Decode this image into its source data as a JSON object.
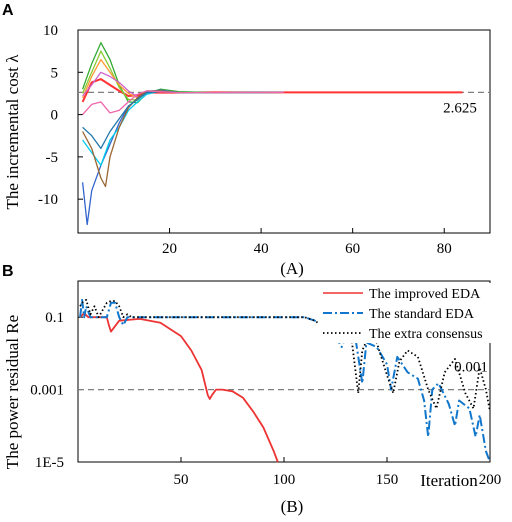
{
  "chart_data": [
    {
      "panel": "A",
      "caption": "(A)",
      "type": "line",
      "ylabel": "The incremental cost λ",
      "xlabel": "",
      "xlim": [
        0,
        90
      ],
      "ylim": [
        -14,
        10
      ],
      "x_ticks": [
        "20",
        "40",
        "60",
        "80"
      ],
      "x_tick_values": [
        20,
        40,
        60,
        80
      ],
      "y_ticks": [
        "10",
        "5",
        "0",
        "-5",
        "-10"
      ],
      "y_tick_values": [
        10,
        5,
        0,
        -5,
        -10
      ],
      "reference_line": {
        "value": 2.625,
        "label": "2.625",
        "color": "#808080"
      },
      "series": [
        {
          "color": "#ff3333",
          "x": [
            1,
            3,
            5,
            7,
            9,
            11,
            13,
            15,
            20,
            30,
            50,
            84
          ],
          "y": [
            1.5,
            3.8,
            4.2,
            3.5,
            2.8,
            2.2,
            2.3,
            2.6,
            2.6,
            2.625,
            2.625,
            2.625
          ]
        },
        {
          "color": "#33aa33",
          "x": [
            1,
            3,
            5,
            7,
            9,
            11,
            13,
            15,
            18,
            22,
            30,
            45
          ],
          "y": [
            3,
            6,
            8.5,
            6.5,
            3.5,
            1.5,
            1.4,
            2.5,
            3.0,
            2.7,
            2.6,
            2.625
          ]
        },
        {
          "color": "#88cc33",
          "x": [
            1,
            3,
            5,
            7,
            9,
            11,
            13,
            15,
            18,
            22,
            30,
            45
          ],
          "y": [
            2.5,
            5,
            7.5,
            5.5,
            3.2,
            1.8,
            1.7,
            2.7,
            2.9,
            2.6,
            2.6,
            2.625
          ]
        },
        {
          "color": "#ff9933",
          "x": [
            1,
            3,
            5,
            7,
            9,
            11,
            13,
            15,
            18,
            22,
            30,
            45
          ],
          "y": [
            2,
            4.5,
            6.5,
            5,
            3.5,
            2.5,
            2.0,
            2.6,
            2.8,
            2.6,
            2.6,
            2.625
          ]
        },
        {
          "color": "#cc66cc",
          "x": [
            1,
            3,
            5,
            7,
            9,
            11,
            13,
            15,
            18,
            22,
            30,
            45
          ],
          "y": [
            2.2,
            3.5,
            5,
            4.5,
            3.8,
            2.8,
            2.1,
            2.4,
            2.8,
            2.6,
            2.6,
            2.625
          ]
        },
        {
          "color": "#3366cc",
          "x": [
            1,
            2,
            3,
            5,
            7,
            9,
            11,
            13,
            15,
            18,
            22,
            30,
            45
          ],
          "y": [
            -8,
            -13,
            -9,
            -6,
            -3.5,
            -1,
            1,
            1.8,
            2.7,
            2.9,
            2.6,
            2.6,
            2.625
          ]
        },
        {
          "color": "#00ccee",
          "x": [
            1,
            3,
            5,
            7,
            9,
            11,
            13,
            15,
            18,
            22,
            30,
            45
          ],
          "y": [
            -3,
            -4.5,
            -6,
            -3,
            -1.5,
            0.5,
            1.5,
            2.4,
            2.8,
            2.6,
            2.6,
            2.625
          ]
        },
        {
          "color": "#996633",
          "x": [
            1,
            3,
            5,
            6,
            7,
            9,
            11,
            13,
            15,
            18,
            22,
            30,
            45
          ],
          "y": [
            -2,
            -4,
            -7.5,
            -8.5,
            -5,
            -1.5,
            0.8,
            2.0,
            2.8,
            2.8,
            2.6,
            2.6,
            2.625
          ]
        },
        {
          "color": "#2277aa",
          "x": [
            1,
            3,
            5,
            7,
            9,
            11,
            13,
            15,
            18,
            22,
            30,
            45
          ],
          "y": [
            -1.5,
            -2.5,
            -4,
            -2,
            -0.5,
            1.0,
            1.8,
            2.6,
            2.7,
            2.6,
            2.6,
            2.625
          ]
        },
        {
          "color": "#ee66aa",
          "x": [
            1,
            3,
            5,
            7,
            9,
            11,
            13,
            15,
            18,
            22,
            30,
            45
          ],
          "y": [
            0,
            1.2,
            1.5,
            0.2,
            0.5,
            1.5,
            2.4,
            2.8,
            2.7,
            2.6,
            2.6,
            2.625
          ]
        }
      ]
    },
    {
      "panel": "B",
      "caption": "(B)",
      "type": "line",
      "yscale": "log",
      "ylabel": "The power residual Re",
      "xlabel": "Iteration",
      "xlim": [
        0,
        200
      ],
      "ylim": [
        1e-05,
        1
      ],
      "x_ticks": [
        "50",
        "100",
        "150",
        "200"
      ],
      "x_tick_values": [
        50,
        100,
        150,
        200
      ],
      "y_ticks": [
        "0.1",
        "0.001",
        "1E-5"
      ],
      "y_tick_values": [
        0.1,
        0.001,
        1e-05
      ],
      "reference_line": {
        "value": 0.001,
        "label": "0.001",
        "color": "#808080"
      },
      "legend": {
        "position": "top-right",
        "entries": [
          {
            "name": "The improved EDA",
            "color": "#ee3333",
            "style": "solid"
          },
          {
            "name": "The standard EDA",
            "color": "#1177cc",
            "style": "dashdot"
          },
          {
            "name": "The extra consensus",
            "color": "#000000",
            "style": "dotted"
          }
        ]
      },
      "series": [
        {
          "name": "The improved EDA",
          "color": "#ee3333",
          "style": "solid",
          "x": [
            1,
            3,
            5,
            10,
            14,
            15,
            16,
            20,
            30,
            40,
            50,
            55,
            60,
            63,
            64,
            65,
            67,
            70,
            75,
            80,
            85,
            90,
            95,
            97
          ],
          "y": [
            0.1,
            0.13,
            0.1,
            0.1,
            0.1,
            0.06,
            0.04,
            0.08,
            0.09,
            0.07,
            0.03,
            0.012,
            0.0035,
            0.0007,
            0.00055,
            0.0007,
            0.001,
            0.001,
            0.0009,
            0.0006,
            0.00025,
            9e-05,
            2e-05,
            1e-05
          ]
        },
        {
          "name": "The standard EDA",
          "color": "#1177cc",
          "style": "dashdot",
          "x": [
            1,
            2,
            3,
            4,
            6,
            8,
            10,
            14,
            16,
            18,
            20,
            22,
            24,
            26,
            30,
            40,
            60,
            80,
            100,
            110,
            115,
            120,
            125,
            128,
            130,
            135,
            138,
            140,
            145,
            150,
            152,
            155,
            160,
            165,
            168,
            170,
            172,
            175,
            180,
            183,
            185,
            190,
            193,
            195,
            198,
            200
          ],
          "y": [
            0.1,
            0.3,
            0.1,
            0.2,
            0.1,
            0.1,
            0.1,
            0.1,
            0.25,
            0.25,
            0.1,
            0.06,
            0.1,
            0.1,
            0.1,
            0.1,
            0.1,
            0.1,
            0.1,
            0.1,
            0.08,
            0.06,
            0.03,
            0.015,
            0.03,
            0.02,
            0.0015,
            0.02,
            0.015,
            0.005,
            0.001,
            0.008,
            0.003,
            0.002,
            0.0005,
            5e-05,
            0.001,
            0.0015,
            0.0004,
            0.0001,
            0.0005,
            0.0003,
            5e-05,
            0.0002,
            2e-05,
            1e-05
          ]
        },
        {
          "name": "The extra consensus",
          "color": "#000000",
          "style": "dotted",
          "x": [
            1,
            2,
            4,
            6,
            8,
            10,
            14,
            16,
            18,
            20,
            22,
            24,
            26,
            30,
            40,
            60,
            80,
            100,
            110,
            115,
            120,
            125,
            128,
            130,
            133,
            136,
            138,
            141,
            145,
            150,
            153,
            156,
            160,
            165,
            170,
            174,
            178,
            183,
            188,
            192,
            195,
            198,
            200
          ],
          "y": [
            0.2,
            0.25,
            0.3,
            0.12,
            0.2,
            0.1,
            0.25,
            0.28,
            0.28,
            0.2,
            0.1,
            0.12,
            0.1,
            0.1,
            0.1,
            0.1,
            0.1,
            0.1,
            0.1,
            0.08,
            0.05,
            0.03,
            0.025,
            0.03,
            0.02,
            0.0008,
            0.012,
            0.03,
            0.02,
            0.0025,
            0.0008,
            0.006,
            0.012,
            0.008,
            0.001,
            0.0003,
            0.003,
            0.007,
            0.0008,
            0.0003,
            0.004,
            0.001,
            0.00025
          ]
        }
      ]
    }
  ]
}
